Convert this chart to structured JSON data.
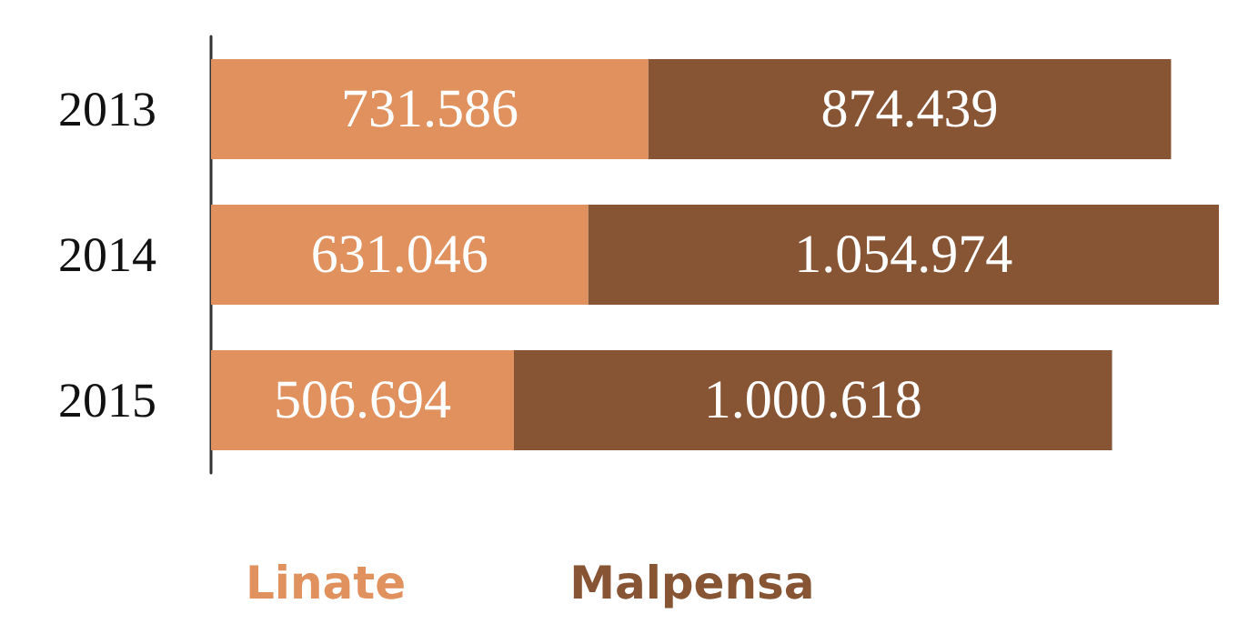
{
  "chart_data": {
    "type": "bar",
    "orientation": "horizontal",
    "stacked": true,
    "categories": [
      "2013",
      "2014",
      "2015"
    ],
    "series": [
      {
        "name": "Linate",
        "color": "#e0915e",
        "values": [
          731586,
          631046,
          506694
        ],
        "value_labels": [
          "731.586",
          "631.046",
          "506.694"
        ]
      },
      {
        "name": "Malpensa",
        "color": "#875434",
        "values": [
          874439,
          1054974,
          1000618
        ],
        "value_labels": [
          "874.439",
          "1.054.974",
          "1.000.618"
        ]
      }
    ],
    "legend": "bottom left"
  }
}
